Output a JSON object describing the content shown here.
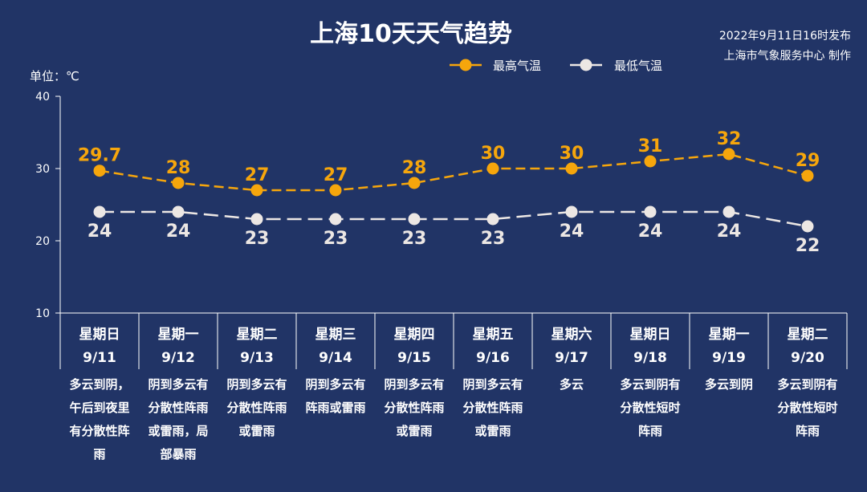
{
  "title": "上海10天天气趋势",
  "publish": {
    "line1": "2022年9月11日16时发布",
    "line2": "上海市气象服务中心 制作"
  },
  "unit_label": "单位：℃",
  "colors": {
    "background": "#213466",
    "high": "#f6a60c",
    "low": "#ece7e4"
  },
  "chart_data": {
    "type": "line",
    "categories": [
      "9/11",
      "9/12",
      "9/13",
      "9/14",
      "9/15",
      "9/16",
      "9/17",
      "9/18",
      "9/19",
      "9/20"
    ],
    "weekdays": [
      "星期日",
      "星期一",
      "星期二",
      "星期三",
      "星期四",
      "星期五",
      "星期六",
      "星期日",
      "星期一",
      "星期二"
    ],
    "series": [
      {
        "name": "最高气温",
        "values": [
          29.7,
          28,
          27,
          27,
          28,
          30,
          30,
          31,
          32,
          29
        ],
        "color": "#f6a60c"
      },
      {
        "name": "最低气温",
        "values": [
          24,
          24,
          23,
          23,
          23,
          23,
          24,
          24,
          24,
          22
        ],
        "color": "#ece7e4"
      }
    ],
    "ylim": [
      10,
      40
    ],
    "yticks": [
      10,
      20,
      30,
      40
    ],
    "legend": "top-right",
    "grid": false,
    "descriptions": [
      [
        "多云到阴，",
        "午后到夜里",
        "有分散性阵",
        "雨"
      ],
      [
        "阴到多云有",
        "分散性阵雨",
        "或雷雨，局",
        "部暴雨"
      ],
      [
        "阴到多云有",
        "分散性阵雨",
        "或雷雨"
      ],
      [
        "阴到多云有",
        "阵雨或雷雨"
      ],
      [
        "阴到多云有",
        "分散性阵雨",
        "或雷雨"
      ],
      [
        "阴到多云有",
        "分散性阵雨",
        "或雷雨"
      ],
      [
        "多云"
      ],
      [
        "多云到阴有",
        "分散性短时",
        "阵雨"
      ],
      [
        "多云到阴"
      ],
      [
        "多云到阴有",
        "分散性短时",
        "阵雨"
      ]
    ]
  }
}
